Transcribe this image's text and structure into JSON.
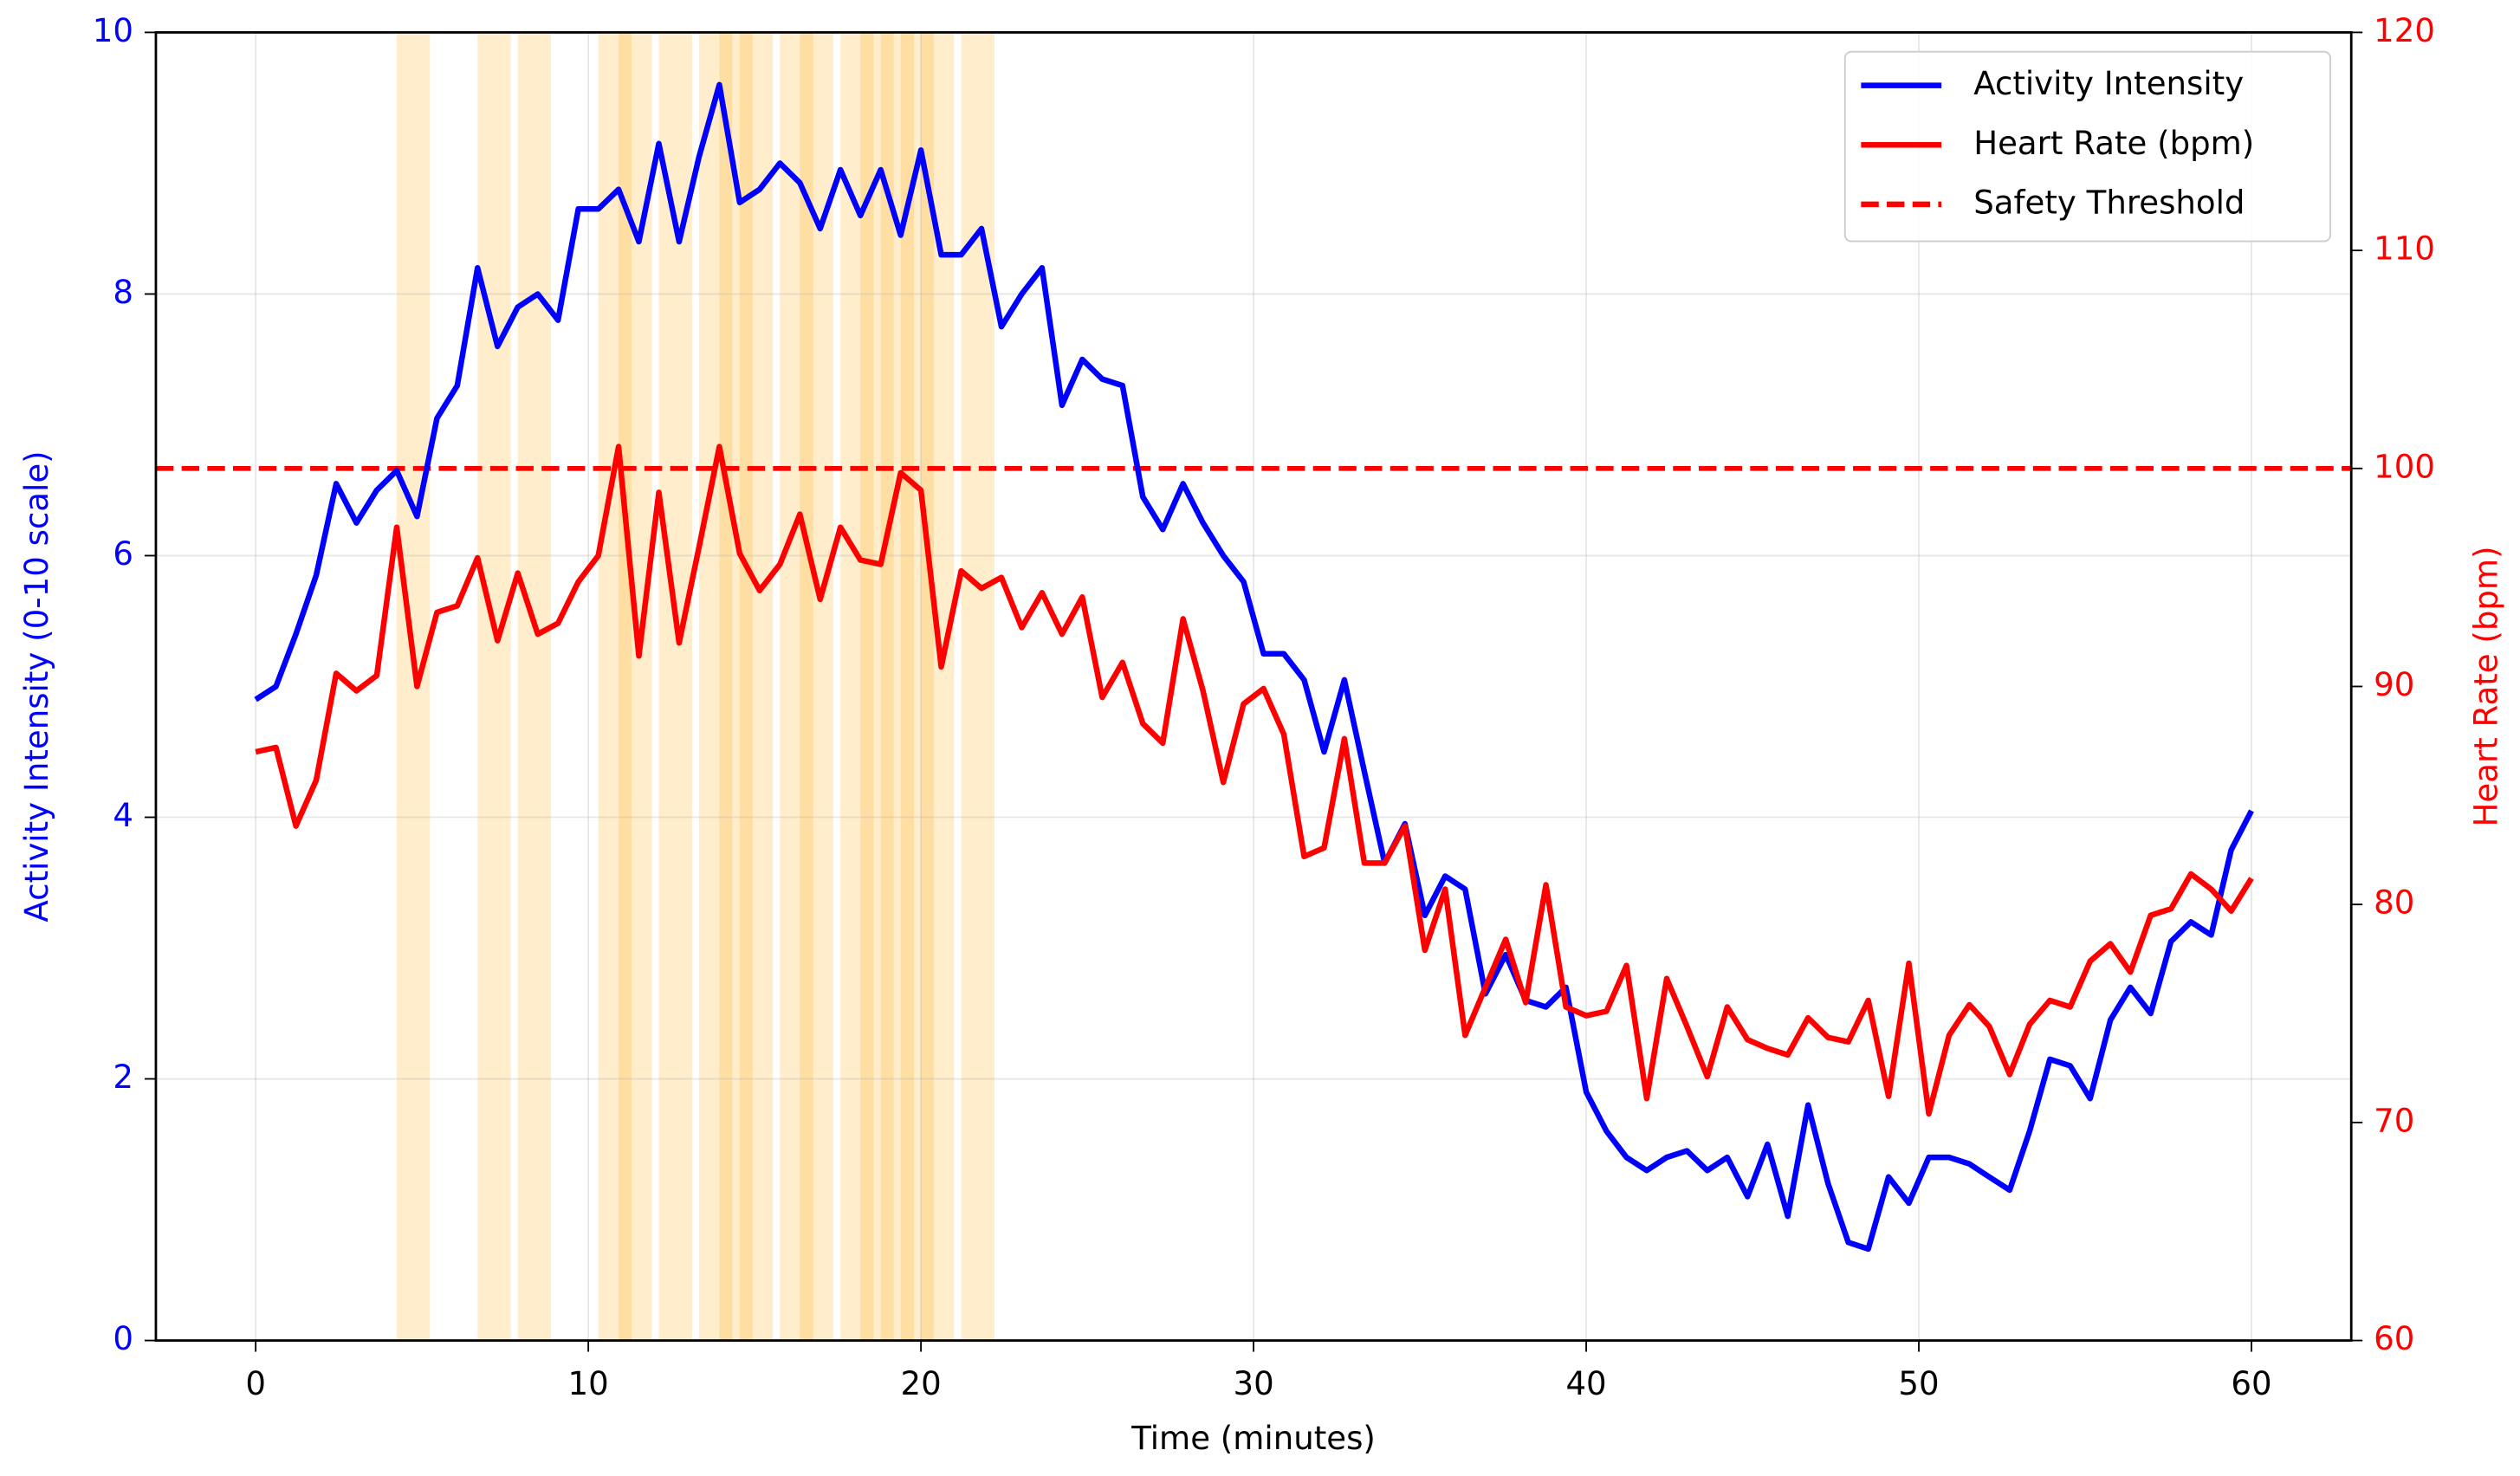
{
  "chart_data": {
    "type": "line",
    "xlabel": "Time (minutes)",
    "ylabel": "Activity Intensity (0-10 scale)",
    "y2label": "Heart Rate (bpm)",
    "x": [
      0,
      0.61,
      1.21,
      1.82,
      2.42,
      3.03,
      3.64,
      4.24,
      4.85,
      5.45,
      6.06,
      6.67,
      7.27,
      7.88,
      8.48,
      9.09,
      9.7,
      10.3,
      10.91,
      11.52,
      12.12,
      12.73,
      13.33,
      13.94,
      14.55,
      15.15,
      15.76,
      16.36,
      16.97,
      17.58,
      18.18,
      18.79,
      19.39,
      20.0,
      20.61,
      21.21,
      21.82,
      22.42,
      23.03,
      23.64,
      24.24,
      24.85,
      25.45,
      26.06,
      26.67,
      27.27,
      27.88,
      28.48,
      29.09,
      29.7,
      30.3,
      30.91,
      31.52,
      32.12,
      32.73,
      33.33,
      33.94,
      34.55,
      35.15,
      35.76,
      36.36,
      36.97,
      37.58,
      38.18,
      38.79,
      39.39,
      40.0,
      40.61,
      41.21,
      41.82,
      42.42,
      43.03,
      43.64,
      44.24,
      44.85,
      45.45,
      46.06,
      46.67,
      47.27,
      47.88,
      48.48,
      49.09,
      49.7,
      50.3,
      50.91,
      51.52,
      52.12,
      52.73,
      53.33,
      53.94,
      54.55,
      55.15,
      55.76,
      56.36,
      56.97,
      57.58,
      58.18,
      58.79,
      59.39,
      60
    ],
    "series": [
      {
        "name": "Activity Intensity",
        "color": "#0000ff",
        "axis": "y",
        "values": [
          4.9,
          5.0,
          5.4,
          5.85,
          6.55,
          6.25,
          6.5,
          6.65,
          6.3,
          7.05,
          7.3,
          8.2,
          7.6,
          7.9,
          8.0,
          7.8,
          8.65,
          8.65,
          8.8,
          8.4,
          9.15,
          8.4,
          9.05,
          9.6,
          8.7,
          8.8,
          9.0,
          8.85,
          8.5,
          8.95,
          8.6,
          8.95,
          8.45,
          9.1,
          8.3,
          8.3,
          8.5,
          7.75,
          8.0,
          8.2,
          7.15,
          7.5,
          7.35,
          7.3,
          6.45,
          6.2,
          6.55,
          6.25,
          6.0,
          5.8,
          5.25,
          5.25,
          5.05,
          4.5,
          5.05,
          4.35,
          3.65,
          3.95,
          3.25,
          3.55,
          3.45,
          2.65,
          2.95,
          2.6,
          2.55,
          2.7,
          1.9,
          1.6,
          1.4,
          1.3,
          1.4,
          1.45,
          1.3,
          1.4,
          1.1,
          1.5,
          0.95,
          1.8,
          1.2,
          0.75,
          0.7,
          1.25,
          1.05,
          1.4,
          1.4,
          1.35,
          1.25,
          1.15,
          1.6,
          2.15,
          2.1,
          1.85,
          2.45,
          2.7,
          2.5,
          3.05,
          3.2,
          3.1,
          3.75,
          4.05
        ]
      },
      {
        "name": "Heart Rate (bpm)",
        "color": "#ff0000",
        "axis": "y2",
        "values": [
          87,
          87.2,
          83.6,
          85.7,
          90.6,
          89.8,
          90.5,
          97.3,
          90,
          93.4,
          93.7,
          95.9,
          92.1,
          95.2,
          92.4,
          92.9,
          94.8,
          96,
          101,
          91.4,
          98.9,
          92,
          96.4,
          101,
          96.1,
          94.4,
          95.6,
          97.9,
          94,
          97.3,
          95.8,
          95.6,
          99.8,
          99,
          90.9,
          95.3,
          94.5,
          95,
          92.7,
          94.3,
          92.4,
          94.1,
          89.5,
          91.1,
          88.3,
          87.4,
          93.1,
          89.8,
          85.6,
          89.2,
          89.9,
          87.8,
          82.2,
          82.6,
          87.6,
          81.9,
          81.9,
          83.6,
          77.9,
          80.7,
          74,
          76.2,
          78.4,
          75.5,
          80.9,
          75.3,
          74.9,
          75.1,
          77.2,
          71.1,
          76.6,
          74.4,
          72.1,
          75.3,
          73.8,
          73.4,
          73.1,
          74.8,
          73.9,
          73.7,
          75.6,
          71.2,
          77.3,
          70.4,
          74,
          75.4,
          74.4,
          72.2,
          74.5,
          75.6,
          75.3,
          77.4,
          78.2,
          76.9,
          79.5,
          79.8,
          81.4,
          80.7,
          79.7,
          81.2
        ]
      }
    ],
    "threshold": {
      "name": "Safety Threshold",
      "value": 100,
      "axis": "y2",
      "color": "#ff0000"
    },
    "highlight_spans": [
      [
        4.24,
        5.24
      ],
      [
        6.67,
        7.67
      ],
      [
        7.88,
        8.88
      ],
      [
        10.3,
        11.3
      ],
      [
        10.91,
        11.91
      ],
      [
        12.12,
        13.12
      ],
      [
        13.33,
        14.33
      ],
      [
        13.94,
        14.94
      ],
      [
        14.55,
        15.55
      ],
      [
        15.76,
        16.76
      ],
      [
        16.36,
        17.36
      ],
      [
        17.58,
        18.58
      ],
      [
        18.18,
        19.18
      ],
      [
        18.79,
        19.79
      ],
      [
        19.39,
        20.39
      ],
      [
        20.0,
        21.0
      ],
      [
        21.21,
        22.21
      ]
    ],
    "highlight_color": "#ffa500",
    "xlim": [
      -3,
      63
    ],
    "xticks": [
      0,
      10,
      20,
      30,
      40,
      50,
      60
    ],
    "ylim": [
      0,
      10
    ],
    "yticks": [
      0,
      2,
      4,
      6,
      8,
      10
    ],
    "y2lim": [
      60,
      120
    ],
    "y2ticks": [
      60,
      70,
      80,
      90,
      100,
      110,
      120
    ],
    "grid": true,
    "legend": "upper right"
  }
}
